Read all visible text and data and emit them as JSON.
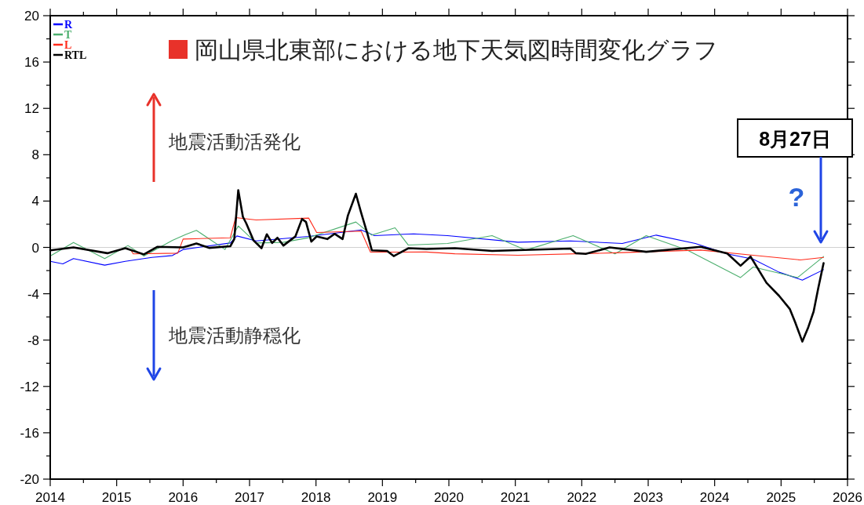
{
  "chart_data": {
    "type": "line",
    "title": "岡山県北東部における地下天気図時間変化グラフ",
    "annotations": [
      "地震活動活発化",
      "地震活動静穏化",
      "8月27日",
      "?"
    ],
    "xlim": [
      2014,
      2026
    ],
    "xticks": [
      2014,
      {
        "value": 2014.5,
        "label": null
      },
      2015,
      {
        "value": 2015.5,
        "label": null
      },
      2016,
      {
        "value": 2016.5,
        "label": null
      },
      2017,
      {
        "value": 2017.5,
        "label": null
      },
      2018,
      {
        "value": 2018.5,
        "label": null
      },
      2019,
      {
        "value": 2019.5,
        "label": null
      },
      2020,
      {
        "value": 2020.5,
        "label": null
      },
      2021,
      {
        "value": 2021.5,
        "label": null
      },
      2022,
      {
        "value": 2022.5,
        "label": null
      },
      2023,
      {
        "value": 2023.5,
        "label": null
      },
      2024,
      {
        "value": 2024.5,
        "label": null
      },
      2025,
      {
        "value": 2025.5,
        "label": null
      },
      2026
    ],
    "ylim": [
      -20,
      20
    ],
    "yticks": [
      -20,
      {
        "value": -18,
        "label": null
      },
      -16,
      {
        "value": -14,
        "label": null
      },
      -12,
      {
        "value": -10,
        "label": null
      },
      -8,
      {
        "value": -6,
        "label": null
      },
      -4,
      {
        "value": -2,
        "label": null
      },
      0,
      {
        "value": 2,
        "label": null
      },
      4,
      {
        "value": 6,
        "label": null
      },
      8,
      {
        "value": 10,
        "label": null
      },
      12,
      {
        "value": 14,
        "label": null
      },
      16,
      {
        "value": 18,
        "label": null
      },
      20
    ],
    "grid": false,
    "legend": "top left",
    "marker": "none",
    "line_style": "solid",
    "ref_lines": [
      {
        "axis": "y",
        "value": 0,
        "color": "#d0d0d0"
      }
    ],
    "series": [
      {
        "name": "R",
        "color": "#0000ff",
        "x": [
          2014.0,
          2014.19,
          2014.35,
          2014.82,
          2015.13,
          2015.53,
          2015.84,
          2016.0,
          2016.71,
          2016.81,
          2017.1,
          2017.89,
          2018.68,
          2018.88,
          2019.47,
          2019.98,
          2021.04,
          2021.83,
          2022.61,
          2023.12,
          2023.71,
          2024.19,
          2024.58,
          2024.97,
          2025.32,
          2025.64
        ],
        "values": [
          -1.2,
          -1.42,
          -0.97,
          -1.53,
          -1.2,
          -0.86,
          -0.7,
          -0.18,
          0.38,
          0.99,
          0.56,
          0.95,
          1.51,
          1.02,
          1.17,
          1.02,
          0.45,
          0.56,
          0.34,
          1.06,
          0.34,
          -0.56,
          -1.02,
          -2.14,
          -2.82,
          -1.92
        ]
      },
      {
        "name": "T",
        "color": "#4caf6e",
        "x": [
          2014.0,
          2014.35,
          2014.82,
          2015.17,
          2015.41,
          2015.84,
          2016.04,
          2016.2,
          2016.63,
          2016.83,
          2017.1,
          2017.5,
          2017.89,
          2018.6,
          2018.84,
          2019.19,
          2019.39,
          2019.98,
          2020.65,
          2021.16,
          2021.87,
          2022.5,
          2022.97,
          2023.59,
          2024.39,
          2024.58,
          2025.25,
          2025.64
        ],
        "values": [
          -0.74,
          0.43,
          -0.97,
          0.16,
          -0.74,
          0.61,
          1.11,
          1.47,
          -0.18,
          1.85,
          0.38,
          0.43,
          0.84,
          2.19,
          1.06,
          1.69,
          0.2,
          0.34,
          1.02,
          -0.23,
          1.02,
          -0.56,
          1.02,
          -0.23,
          -2.6,
          -1.69,
          -2.6,
          -0.79
        ]
      },
      {
        "name": "L",
        "color": "#ff2a1a",
        "x": [
          2015.21,
          2015.25,
          2015.92,
          2016.0,
          2016.71,
          2016.79,
          2017.1,
          2017.89,
          2018.01,
          2018.68,
          2018.82,
          2019.66,
          2020.09,
          2021.04,
          2022.61,
          2023.79,
          2024.58,
          2025.29,
          2025.64
        ],
        "values": [
          -0.2,
          -0.56,
          -0.5,
          0.72,
          0.83,
          2.57,
          2.37,
          2.53,
          1.29,
          1.4,
          -0.41,
          -0.4,
          -0.55,
          -0.68,
          -0.45,
          -0.23,
          -0.68,
          -1.08,
          -0.86
        ]
      },
      {
        "name": "RTL",
        "color": "#000000",
        "x": [
          2014.0,
          2014.35,
          2014.86,
          2015.13,
          2015.41,
          2015.61,
          2016.0,
          2016.2,
          2016.39,
          2016.71,
          2016.77,
          2016.83,
          2016.9,
          2016.95,
          2017.06,
          2017.18,
          2017.26,
          2017.34,
          2017.42,
          2017.51,
          2017.61,
          2017.69,
          2017.79,
          2017.85,
          2017.93,
          2018.01,
          2018.17,
          2018.28,
          2018.4,
          2018.48,
          2018.6,
          2018.68,
          2018.78,
          2018.84,
          2019.07,
          2019.17,
          2019.39,
          2019.66,
          2020.09,
          2020.65,
          2021.83,
          2021.91,
          2022.06,
          2022.42,
          2022.97,
          2023.79,
          2024.19,
          2024.39,
          2024.54,
          2024.78,
          2024.97,
          2025.13,
          2025.21,
          2025.32,
          2025.41,
          2025.49,
          2025.56,
          2025.64
        ],
        "values": [
          -0.25,
          0,
          -0.5,
          -0.07,
          -0.6,
          0.05,
          0,
          0.34,
          -0.04,
          0.1,
          0.72,
          4.94,
          2.64,
          2.08,
          0.6,
          -0.07,
          1.13,
          0.38,
          0.83,
          0.16,
          0.6,
          0.95,
          2.46,
          2.19,
          0.5,
          0.95,
          0.72,
          1.17,
          0.72,
          2.75,
          4.63,
          2.98,
          1.06,
          -0.25,
          -0.3,
          -0.75,
          -0.07,
          -0.14,
          -0.07,
          -0.3,
          -0.1,
          -0.5,
          -0.56,
          0,
          -0.38,
          0.05,
          -0.52,
          -1.58,
          -0.79,
          -3.05,
          -4.18,
          -5.3,
          -6.43,
          -8.13,
          -6.88,
          -5.53,
          -3.5,
          -1.35
        ]
      }
    ]
  }
}
